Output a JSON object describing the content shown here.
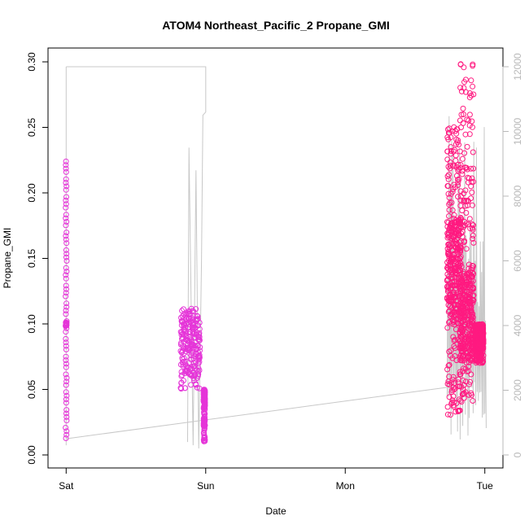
{
  "chart_data": {
    "type": "scatter",
    "title": "ATOM4 Northeast_Pacific_2 Propane_GMI",
    "xlabel": "Date",
    "ylabel": "Propane_GMI",
    "x_ticks": [
      "Sat",
      "Sun",
      "Mon",
      "Tue"
    ],
    "xlim_days": [
      -0.13,
      3.13
    ],
    "ylim": [
      0,
      0.3
    ],
    "y_ticks": [
      "0.00",
      "0.05",
      "0.10",
      "0.15",
      "0.20",
      "0.25",
      "0.30"
    ],
    "y2lim": [
      0,
      12000
    ],
    "y2_ticks": [
      "0",
      "2000",
      "4000",
      "6000",
      "8000",
      "10000",
      "12000"
    ],
    "colors": {
      "points_early": "#e535d8",
      "points_late": "#ff1a80",
      "secondary_line": "#c8c8c8"
    },
    "series": [
      {
        "kind": "points",
        "clusters": [
          {
            "day": 0.0,
            "spread": 0.004,
            "ymin": 0.01,
            "ymax": 0.224,
            "dense": [
              0.098,
              0.102
            ]
          },
          {
            "day": 0.89,
            "spread": 0.07,
            "ymin": 0.05,
            "ymax": 0.114,
            "dense": [
              0.06,
              0.11
            ]
          },
          {
            "day": 0.99,
            "spread": 0.005,
            "ymin": 0.01,
            "ymax": 0.05,
            "dense": [
              0.04,
              0.05
            ]
          },
          {
            "day": 2.78,
            "spread": 0.05,
            "ymin": 0.03,
            "ymax": 0.252,
            "dense": [
              0.1,
              0.18
            ]
          },
          {
            "day": 2.87,
            "spread": 0.05,
            "ymin": 0.04,
            "ymax": 0.299,
            "dense": [
              0.07,
              0.14
            ]
          },
          {
            "day": 2.96,
            "spread": 0.03,
            "ymin": 0.07,
            "ymax": 0.1,
            "dense": [
              0.08,
              0.1
            ]
          }
        ]
      },
      {
        "kind": "secondary-line",
        "axis": "right"
      }
    ]
  }
}
